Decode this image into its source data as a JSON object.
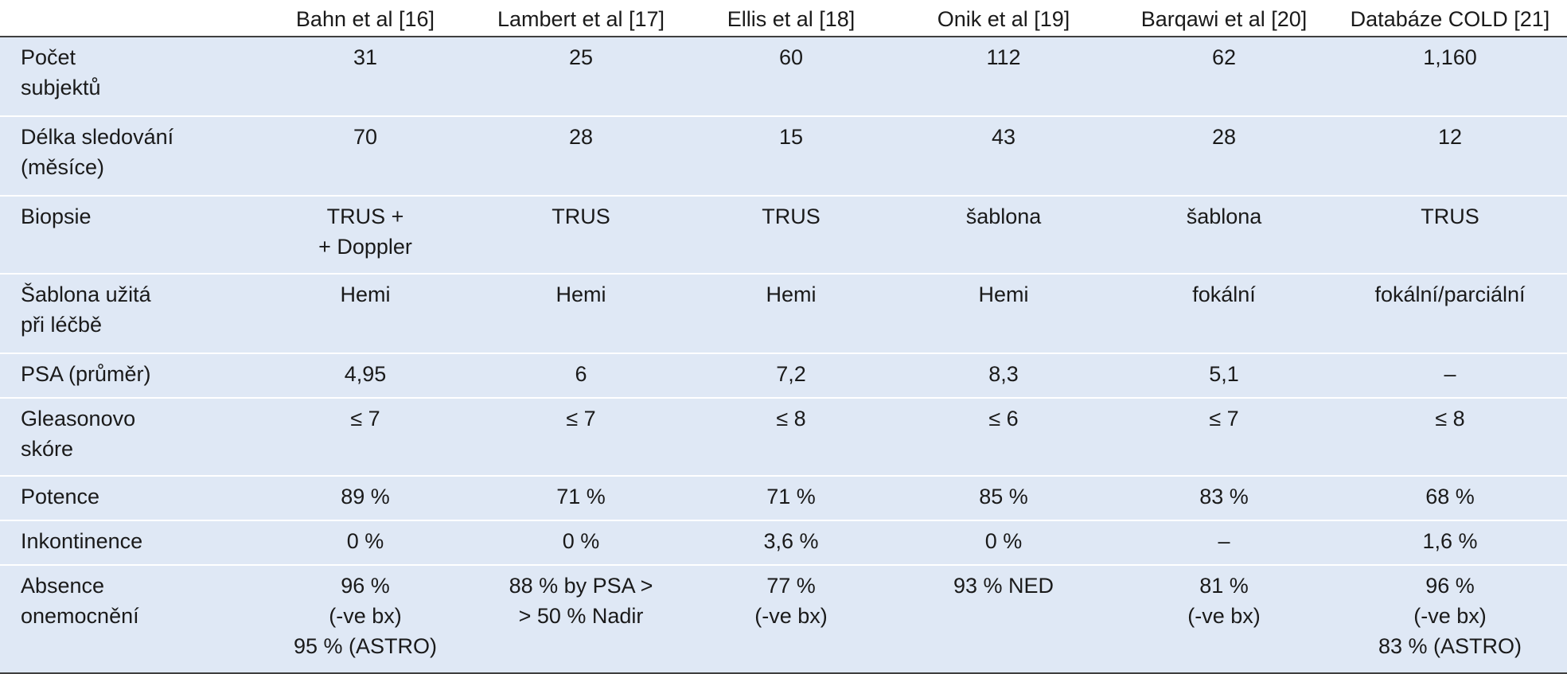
{
  "header": {
    "studies": [
      "Bahn et al [16]",
      "Lambert et al [17]",
      "Ellis et al [18]",
      "Onik et al [19]",
      "Barqawi et al [20]",
      "Databáze COLD [21]"
    ]
  },
  "rows": [
    {
      "label": [
        "Počet",
        "subjektů"
      ],
      "cells": [
        [
          "31"
        ],
        [
          "25"
        ],
        [
          "60"
        ],
        [
          "112"
        ],
        [
          "62"
        ],
        [
          "1,160"
        ]
      ]
    },
    {
      "label": [
        "Délka sledování",
        "(měsíce)"
      ],
      "cells": [
        [
          "70"
        ],
        [
          "28"
        ],
        [
          "15"
        ],
        [
          "43"
        ],
        [
          "28"
        ],
        [
          "12"
        ]
      ]
    },
    {
      "label": [
        "Biopsie"
      ],
      "cells": [
        [
          "TRUS +",
          "+ Doppler"
        ],
        [
          "TRUS"
        ],
        [
          "TRUS"
        ],
        [
          "šablona"
        ],
        [
          "šablona"
        ],
        [
          "TRUS"
        ]
      ]
    },
    {
      "label": [
        "Šablona užitá",
        "při léčbě"
      ],
      "cells": [
        [
          "Hemi"
        ],
        [
          "Hemi"
        ],
        [
          "Hemi"
        ],
        [
          "Hemi"
        ],
        [
          "fokální"
        ],
        [
          "fokální/parciální"
        ]
      ]
    },
    {
      "label": [
        "PSA (průměr)"
      ],
      "cells": [
        [
          "4,95"
        ],
        [
          "6"
        ],
        [
          "7,2"
        ],
        [
          "8,3"
        ],
        [
          "5,1"
        ],
        [
          "–"
        ]
      ]
    },
    {
      "label": [
        "Gleasonovo",
        "skóre"
      ],
      "cells": [
        [
          "≤ 7"
        ],
        [
          "≤ 7"
        ],
        [
          "≤ 8"
        ],
        [
          "≤ 6"
        ],
        [
          "≤ 7"
        ],
        [
          "≤ 8"
        ]
      ]
    },
    {
      "label": [
        "Potence"
      ],
      "cells": [
        [
          "89 %"
        ],
        [
          "71 %"
        ],
        [
          "71 %"
        ],
        [
          "85 %"
        ],
        [
          "83 %"
        ],
        [
          "68 %"
        ]
      ]
    },
    {
      "label": [
        "Inkontinence"
      ],
      "cells": [
        [
          "0 %"
        ],
        [
          "0 %"
        ],
        [
          "3,6 %"
        ],
        [
          "0 %"
        ],
        [
          "–"
        ],
        [
          "1,6 %"
        ]
      ]
    },
    {
      "label": [
        "Absence",
        "onemocnění"
      ],
      "cells": [
        [
          "96 %",
          "(-ve bx)",
          "95 % (ASTRO)"
        ],
        [
          "88 % by PSA >",
          "> 50 % Nadir"
        ],
        [
          "77 %",
          "(-ve bx)"
        ],
        [
          "93 % NED"
        ],
        [
          "81 %",
          "(-ve bx)"
        ],
        [
          "96 %",
          "(-ve bx)",
          "83 % (ASTRO)"
        ]
      ]
    }
  ]
}
